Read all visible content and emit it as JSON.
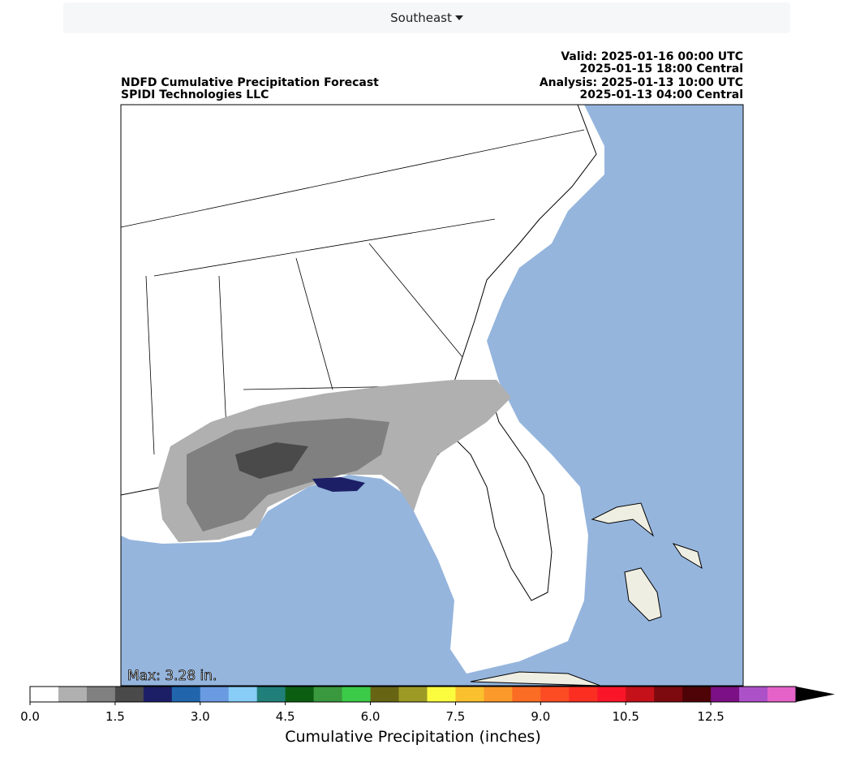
{
  "header": {
    "region": "Southeast"
  },
  "map": {
    "title": [
      "NDFD Cumulative Precipitation Forecast",
      "SPIDI Technologies LLC"
    ],
    "times": [
      "Valid: 2025-01-16 00:00 UTC",
      "2025-01-15 18:00 Central",
      "Analysis: 2025-01-13 10:00 UTC",
      "2025-01-13 04:00 Central"
    ],
    "max_label": "Max: 3.28 in."
  },
  "colorbar": {
    "label": "Cumulative Precipitation (inches)",
    "bounds": [
      0,
      0.5,
      1,
      1.5,
      2,
      2.5,
      3,
      3.5,
      4,
      4.5,
      5,
      5.5,
      6,
      6.5,
      7,
      7.5,
      8,
      8.5,
      9,
      9.5,
      10,
      10.5,
      11,
      12,
      12.5,
      13,
      14
    ],
    "colors": [
      "#ffffff",
      "#b0b0b0",
      "#808080",
      "#4a4a4a",
      "#1c1f66",
      "#2166ac",
      "#6a9be0",
      "#87cdf8",
      "#217f7a",
      "#0b5e11",
      "#3a983e",
      "#3bcb48",
      "#676513",
      "#9d9b26",
      "#fcfc3e",
      "#fbc02d",
      "#fb9a2b",
      "#fb6c24",
      "#fb4c24",
      "#fa2f22",
      "#fa1628",
      "#c5111a",
      "#7d0a0e",
      "#4e0306",
      "#7b1184",
      "#ad51c8",
      "#e563c8"
    ],
    "ticks": [
      {
        "value": 0,
        "label": "0.0"
      },
      {
        "value": 1.5,
        "label": "1.5"
      },
      {
        "value": 3,
        "label": "3.0"
      },
      {
        "value": 4.5,
        "label": "4.5"
      },
      {
        "value": 6,
        "label": "6.0"
      },
      {
        "value": 7.5,
        "label": "7.5"
      },
      {
        "value": 9,
        "label": "9.0"
      },
      {
        "value": 10.5,
        "label": "10.5"
      },
      {
        "value": 12.5,
        "label": "12.5"
      }
    ]
  }
}
